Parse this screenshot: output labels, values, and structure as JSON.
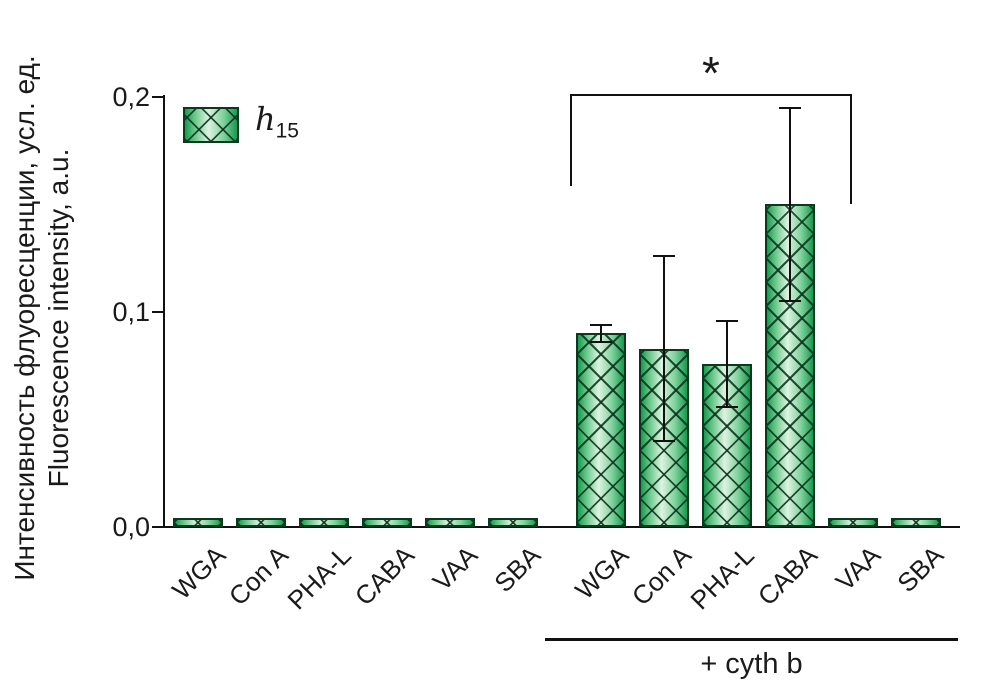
{
  "figure": {
    "ylabel_line1": "Интенсивность флуоресценции, усл. ед.",
    "ylabel_line2": "Fluorescence intensity, a.u.",
    "legend": {
      "base": "h",
      "sub": "15"
    },
    "significance_label": "*",
    "group_label": "+ cyth b",
    "colors": {
      "bar_dark": "#17994f",
      "bar_light": "#ddf3e0",
      "bar_outline": "#0a3a1e",
      "hatch": "#0a3a1e",
      "axis": "#111111"
    }
  },
  "chart_data": {
    "type": "bar",
    "title": "",
    "xlabel": "",
    "ylabel": "Интенсивность флуоресценции, усл. ед. / Fluorescence intensity, a.u.",
    "ylim": [
      0,
      0.2
    ],
    "yticks": [
      "0,0",
      "0,1",
      "0,2"
    ],
    "ytick_values": [
      0,
      0.1,
      0.2
    ],
    "grid": false,
    "legend_entries": [
      "h15"
    ],
    "legend_position": "upper-left",
    "categories": [
      "WGA",
      "Con A",
      "PHA-L",
      "CABA",
      "VAA",
      "SBA",
      "WGA",
      "Con A",
      "PHA-L",
      "CABA",
      "VAA",
      "SBA"
    ],
    "values": [
      0.004,
      0.004,
      0.004,
      0.004,
      0.004,
      0.004,
      0.09,
      0.083,
      0.076,
      0.15,
      0.004,
      0.004
    ],
    "errors": [
      0,
      0,
      0,
      0,
      0,
      0,
      0.004,
      0.043,
      0.02,
      0.045,
      0,
      0
    ],
    "groups": [
      {
        "label": "",
        "indices": [
          0,
          1,
          2,
          3,
          4,
          5
        ]
      },
      {
        "label": "+ cyth b",
        "indices": [
          6,
          7,
          8,
          9,
          10,
          11
        ]
      }
    ],
    "annotations": [
      {
        "type": "significance",
        "label": "*",
        "from_category_index": 6,
        "to_category_index": 9
      }
    ]
  }
}
